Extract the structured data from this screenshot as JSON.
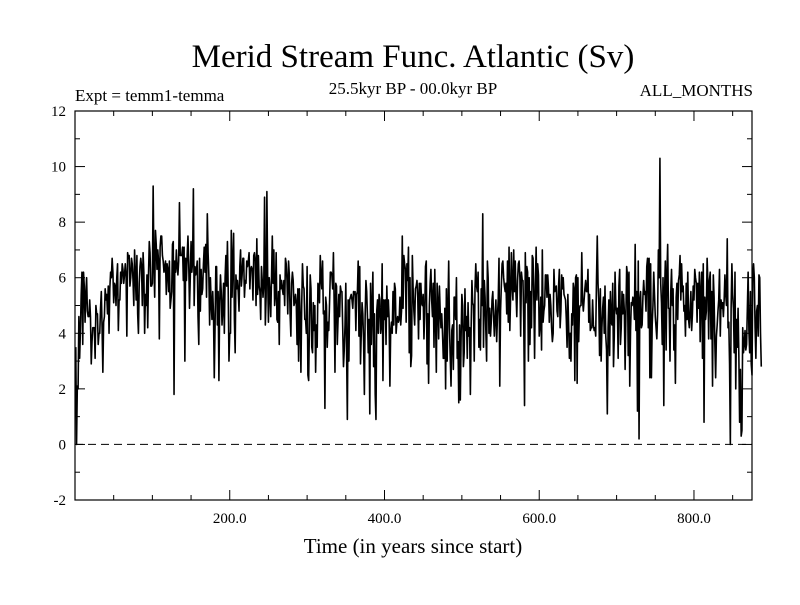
{
  "chart_data": {
    "type": "line",
    "title": "Merid Stream Func. Atlantic (Sv)",
    "subtitle": "25.5kyr BP - 00.0kyr BP",
    "expt_label": "Expt = temm1-temma",
    "months_label": "ALL_MONTHS",
    "xlabel": "Time (in years since start)",
    "ylabel": "",
    "xlim": [
      0,
      875
    ],
    "ylim": [
      -2,
      12
    ],
    "x_ticks": [
      200,
      400,
      600,
      800
    ],
    "x_tick_labels": [
      "200.0",
      "400.0",
      "600.0",
      "800.0"
    ],
    "y_ticks": [
      -2,
      0,
      2,
      4,
      6,
      8,
      10,
      12
    ],
    "y_tick_labels": [
      "-2",
      "0",
      "2",
      "4",
      "6",
      "8",
      "10",
      "12"
    ],
    "zero_line": 0,
    "grid": false,
    "series": [
      {
        "name": "Merid Stream Func. Atlantic",
        "x_start": 1,
        "x_step": 1,
        "values": [
          3.5,
          0.0,
          2.1,
          2.0,
          4.6,
          3.1,
          4.1,
          5.4,
          6.2,
          3.6,
          6.2,
          5.7,
          4.4,
          5.4,
          6.0,
          4.8,
          4.6,
          4.6,
          5.2,
          4.6,
          2.9,
          3.7,
          4.2,
          4.2,
          4.2,
          3.1,
          5.0,
          4.7,
          4.7,
          3.6,
          4.0,
          4.0,
          4.9,
          5.5,
          4.2,
          2.6,
          4.4,
          4.6,
          5.6,
          5.2,
          5.4,
          4.7,
          5.7,
          4.0,
          5.6,
          6.2,
          6.0,
          6.7,
          6.2,
          5.1,
          5.8,
          5.7,
          5.0,
          6.0,
          6.5,
          4.1,
          5.2,
          5.2,
          6.2,
          5.8,
          6.5,
          6.3,
          5.8,
          6.1,
          6.5,
          6.1,
          3.9,
          6.9,
          6.7,
          6.8,
          5.7,
          6.0,
          6.7,
          6.5,
          5.9,
          5.0,
          7.0,
          6.1,
          5.2,
          6.8,
          4.7,
          4.0,
          5.8,
          6.4,
          6.7,
          6.4,
          5.0,
          6.9,
          6.2,
          4.0,
          5.4,
          5.0,
          6.1,
          4.2,
          6.1,
          7.3,
          6.9,
          5.7,
          5.7,
          5.8,
          9.3,
          6.4,
          5.3,
          7.7,
          7.2,
          6.3,
          7.0,
          6.6,
          3.8,
          7.1,
          7.5,
          7.5,
          6.8,
          6.6,
          6.2,
          6.4,
          6.6,
          5.4,
          6.5,
          6.3,
          5.5,
          6.6,
          4.9,
          5.2,
          5.5,
          7.2,
          7.3,
          1.8,
          6.6,
          6.2,
          7.0,
          6.4,
          6.1,
          6.6,
          8.7,
          6.8,
          6.8,
          6.8,
          7.1,
          5.9,
          7.1,
          3.0,
          6.7,
          5.9,
          6.8,
          7.5,
          6.5,
          4.9,
          6.0,
          7.3,
          6.2,
          6.6,
          9.2,
          5.0,
          6.4,
          6.1,
          6.3,
          6.6,
          4.6,
          3.6,
          6.7,
          4.8,
          6.3,
          5.4,
          5.6,
          6.5,
          7.1,
          6.2,
          7.2,
          5.3,
          8.3,
          6.9,
          6.1,
          4.3,
          6.0,
          5.1,
          4.5,
          5.5,
          4.7,
          2.4,
          4.2,
          6.4,
          6.4,
          4.3,
          5.5,
          2.3,
          5.1,
          6.1,
          5.5,
          4.3,
          4.9,
          5.8,
          4.0,
          6.0,
          6.8,
          5.7,
          7.3,
          5.6,
          3.0,
          4.0,
          4.0,
          7.7,
          5.3,
          6.6,
          7.6,
          4.5,
          3.3,
          6.1,
          5.6,
          5.9,
          5.5,
          4.8,
          6.4,
          7.0,
          5.7,
          6.1,
          6.7,
          6.7,
          5.3,
          5.9,
          5.8,
          6.6,
          6.4,
          6.6,
          6.9,
          5.6,
          6.3,
          6.4,
          6.3,
          5.2,
          6.8,
          6.9,
          6.6,
          5.0,
          7.4,
          5.4,
          6.8,
          5.7,
          5.5,
          4.5,
          6.4,
          5.9,
          5.3,
          5.8,
          8.9,
          4.3,
          5.3,
          9.1,
          6.1,
          4.4,
          6.0,
          5.5,
          4.6,
          6.0,
          7.5,
          5.8,
          7.0,
          5.0,
          5.4,
          6.9,
          4.5,
          4.4,
          5.5,
          3.6,
          6.1,
          5.6,
          5.9,
          5.6,
          5.4,
          5.9,
          5.0,
          6.7,
          6.5,
          5.9,
          4.7,
          6.6,
          6.1,
          4.7,
          3.9,
          5.8,
          6.2,
          5.9,
          5.0,
          5.1,
          5.4,
          5.1,
          3.6,
          5.6,
          3.0,
          5.6,
          4.6,
          2.6,
          5.0,
          6.5,
          5.7,
          5.6,
          4.5,
          4.5,
          4.0,
          6.4,
          2.5,
          2.3,
          4.3,
          6.1,
          5.6,
          3.5,
          3.3,
          5.1,
          4.1,
          5.0,
          2.6,
          4.3,
          3.5,
          5.8,
          5.7,
          5.1,
          6.8,
          6.0,
          5.6,
          6.6,
          4.7,
          4.8,
          1.3,
          5.3,
          5.0,
          3.5,
          4.4,
          4.1,
          5.1,
          6.2,
          6.2,
          6.1,
          5.6,
          6.9,
          5.0,
          2.6,
          5.8,
          5.7,
          3.6,
          4.5,
          5.4,
          4.6,
          5.7,
          5.5,
          5.5,
          4.2,
          2.8,
          3.4,
          4.3,
          5.8,
          3.4,
          0.9,
          5.2,
          3.0,
          5.2,
          5.3,
          5.4,
          5.2,
          4.9,
          5.5,
          5.4,
          5.5,
          4.1,
          5.4,
          5.5,
          6.6,
          3.9,
          6.4,
          2.9,
          4.0,
          5.1,
          4.7,
          3.7,
          1.8,
          4.6,
          5.9,
          5.5,
          4.6,
          3.3,
          4.5,
          1.1,
          5.8,
          3.6,
          5.0,
          6.2,
          2.8,
          4.7,
          1.8,
          0.9,
          4.8,
          5.2,
          4.0,
          5.4,
          5.2,
          4.0,
          4.3,
          6.5,
          2.3,
          5.2,
          4.5,
          5.2,
          3.6,
          5.7,
          4.6,
          5.2,
          4.5,
          2.1,
          4.1,
          4.4,
          4.0,
          5.5,
          4.3,
          5.8,
          5.6,
          4.0,
          4.4,
          4.6,
          4.4,
          4.5,
          5.3,
          4.3,
          4.8,
          7.5,
          4.9,
          6.8,
          6.5,
          6.3,
          4.4,
          6.5,
          5.9,
          7.1,
          3.3,
          6.0,
          2.8,
          3.2,
          6.8,
          5.6,
          4.8,
          4.3,
          5.6,
          5.7,
          5.9,
          5.3,
          3.8,
          5.8,
          4.5,
          5.8,
          5.1,
          5.0,
          5.4,
          3.8,
          4.7,
          6.4,
          6.6,
          2.9,
          4.7,
          2.2,
          5.0,
          5.8,
          6.3,
          5.2,
          4.6,
          5.8,
          3.5,
          6.3,
          4.6,
          2.6,
          5.8,
          5.1,
          3.8,
          5.7,
          4.8,
          4.2,
          4.7,
          4.0,
          3.1,
          3.1,
          4.9,
          2.0,
          5.6,
          3.0,
          4.9,
          6.6,
          4.2,
          3.1,
          2.1,
          4.1,
          4.3,
          2.7,
          5.3,
          5.3,
          4.5,
          6.0,
          3.1,
          3.7,
          1.5,
          4.3,
          1.6,
          3.8,
          5.4,
          5.0,
          2.8,
          3.3,
          5.6,
          4.1,
          4.6,
          3.1,
          5.1,
          3.9,
          4.2,
          1.8,
          4.2,
          5.9,
          5.1,
          5.0,
          3.0,
          5.6,
          6.5,
          5.7,
          5.5,
          6.2,
          3.5,
          4.5,
          3.4,
          5.6,
          5.0,
          8.3,
          3.5,
          5.9,
          5.3,
          4.1,
          3.0,
          6.6,
          6.0,
          4.0,
          4.9,
          3.9,
          4.4,
          5.2,
          5.5,
          4.6,
          3.9,
          4.6,
          5.2,
          3.7,
          4.6,
          5.2,
          6.7,
          2.1,
          4.8,
          5.7,
          6.5,
          6.6,
          6.0,
          5.7,
          5.5,
          5.8,
          4.7,
          6.6,
          4.4,
          7.1,
          4.1,
          5.3,
          6.9,
          5.7,
          5.2,
          7.0,
          5.5,
          6.6,
          5.4,
          4.6,
          5.9,
          6.5,
          6.6,
          6.0,
          3.9,
          6.2,
          5.9,
          5.9,
          4.4,
          1.4,
          6.9,
          5.1,
          6.4,
          6.2,
          3.0,
          6.0,
          3.6,
          5.5,
          4.2,
          6.8,
          6.7,
          5.3,
          3.1,
          5.7,
          7.1,
          5.2,
          6.5,
          6.1,
          3.9,
          4.3,
          5.3,
          3.4,
          7.0,
          4.4,
          4.8,
          5.0,
          6.1,
          6.1,
          5.3,
          6.1,
          5.6,
          4.4,
          5.4,
          5.0,
          4.2,
          3.7,
          4.0,
          6.3,
          5.5,
          5.6,
          5.7,
          4.8,
          4.6,
          5.7,
          6.3,
          4.2,
          4.8,
          6.1,
          5.6,
          6.0,
          5.4,
          5.3,
          5.2,
          4.5,
          3.5,
          5.4,
          4.3,
          3.1,
          4.0,
          3.0,
          4.7,
          4.3,
          5.8,
          5.6,
          2.3,
          6.0,
          6.1,
          2.2,
          6.0,
          3.7,
          4.9,
          5.0,
          5.0,
          6.9,
          5.2,
          4.8,
          5.2,
          5.6,
          5.9,
          5.5,
          5.5,
          6.3,
          4.4,
          5.4,
          4.1,
          4.2,
          4.2,
          5.2,
          4.3,
          4.1,
          4.2,
          3.9,
          5.9,
          7.5,
          5.8,
          5.1,
          3.2,
          5.6,
          3.0,
          4.2,
          4.9,
          5.3,
          4.0,
          5.7,
          3.9,
          3.4,
          1.1,
          4.2,
          5.2,
          3.2,
          5.5,
          4.4,
          4.3,
          5.8,
          2.8,
          3.9,
          6.2,
          5.0,
          4.7,
          4.9,
          3.1,
          5.7,
          6.3,
          3.6,
          4.2,
          5.5,
          4.7,
          5.4,
          4.8,
          2.7,
          4.6,
          6.4,
          6.1,
          3.2,
          6.2,
          2.1,
          4.1,
          5.1,
          5.0,
          5.3,
          5.2,
          4.5,
          7.2,
          4.1,
          5.5,
          1.2,
          6.6,
          0.2,
          5.2,
          5.5,
          4.2,
          4.3,
          5.3,
          5.9,
          5.4,
          5.5,
          4.8,
          6.4,
          6.7,
          4.2,
          6.7,
          2.4,
          6.5,
          2.4,
          4.3,
          5.0,
          6.2,
          5.4,
          4.6,
          4.2,
          3.8,
          4.7,
          7.0,
          6.0,
          10.3,
          5.8,
          5.1,
          3.6,
          6.0,
          1.4,
          5.5,
          6.6,
          3.4,
          6.1,
          7.2,
          4.9,
          4.9,
          3.0,
          5.5,
          6.3,
          5.0,
          5.6,
          3.4,
          4.3,
          2.2,
          5.3,
          5.8,
          4.5,
          5.9,
          6.1,
          6.8,
          5.2,
          6.5,
          5.5,
          5.7,
          4.8,
          5.0,
          3.9,
          5.8,
          4.5,
          6.2,
          4.5,
          4.2,
          4.8,
          5.5,
          4.1,
          4.7,
          5.7,
          5.2,
          6.3,
          6.0,
          5.8,
          4.4,
          5.8,
          4.9,
          6.2,
          3.7,
          5.5,
          6.2,
          3.1,
          6.5,
          0.8,
          5.3,
          4.5,
          4.8,
          6.7,
          5.8,
          3.8,
          5.9,
          6.2,
          3.8,
          5.5,
          2.1,
          6.1,
          5.3,
          3.6,
          2.4,
          3.9,
          4.3,
          4.8,
          5.2,
          6.3,
          3.9,
          5.2,
          4.9,
          5.1,
          4.6,
          5.2,
          6.1,
          5.4,
          5.0,
          7.4,
          4.2,
          4.4,
          2.9,
          0.0,
          4.9,
          6.5,
          5.4,
          4.9,
          3.3,
          6.2,
          2.0,
          4.5,
          3.5,
          4.9,
          3.2,
          0.8,
          2.7,
          0.3,
          0.5,
          4.2,
          3.3,
          3.6,
          4.1,
          3.4,
          3.6,
          4.9,
          6.2,
          4.1,
          3.3,
          5.5,
          2.9,
          2.5,
          6.0,
          6.5,
          6.0,
          4.2,
          3.1,
          4.8,
          5.0,
          3.9,
          6.1,
          6.0,
          4.0,
          2.8
        ]
      }
    ]
  }
}
